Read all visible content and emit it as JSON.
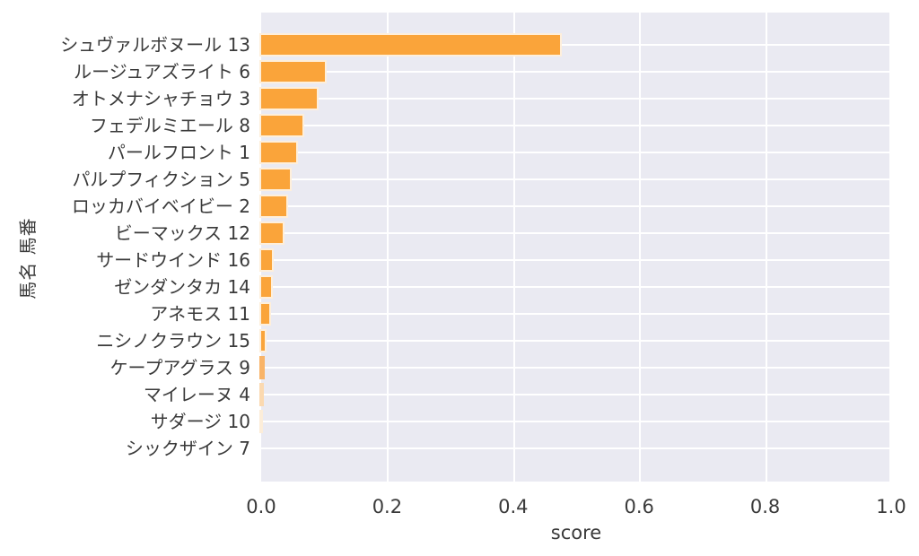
{
  "chart_data": {
    "type": "bar",
    "orientation": "horizontal",
    "xlabel": "score",
    "ylabel": "馬名 馬番",
    "xlim": [
      0,
      1.0
    ],
    "grid": true,
    "legend": null,
    "plot_bg_color": "#eaeaf2",
    "grid_color": "#ffffff",
    "bar_color": "#faa43a",
    "bar_edge_color": "#ffffff",
    "text_color": "#3a3a3a",
    "x_ticks": [
      "0.0",
      "0.2",
      "0.4",
      "0.6",
      "0.8",
      "1.0"
    ],
    "x_tick_values": [
      0,
      0.2,
      0.4,
      0.6,
      0.8,
      1.0
    ],
    "categories": [
      "シュヴァルボヌール 13",
      "ルージュアズライト 6",
      "オトメナシャチョウ 3",
      "フェデルミエール 8",
      "パールフロント 1",
      "パルプフィクション 5",
      "ロッカバイベイビー 2",
      "ビーマックス 12",
      "サードウインド 16",
      "ゼンダンタカ 14",
      "アネモス 11",
      "ニシノクラウン 15",
      "ケープアグラス 9",
      "マイレーヌ 4",
      "サダージ 10",
      "シックザイン 7"
    ],
    "values": [
      0.475,
      0.101,
      0.089,
      0.065,
      0.056,
      0.046,
      0.04,
      0.034,
      0.017,
      0.0155,
      0.0125,
      0.005,
      0.004,
      0.0025,
      0.0015,
      0.0005
    ],
    "faint_bar_colors": {
      "12": "#f9b468",
      "13": "#fbd9b0",
      "14": "#fcedd9"
    }
  }
}
